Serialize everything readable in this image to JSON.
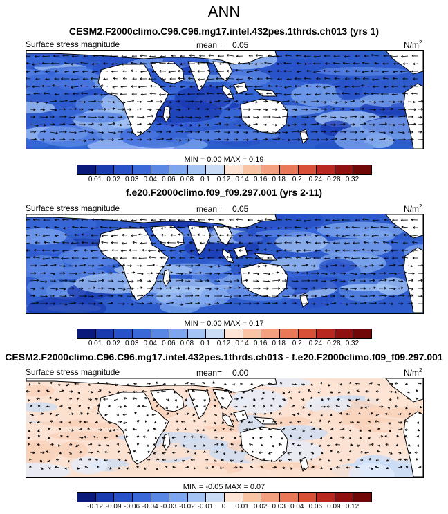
{
  "title": "ANN",
  "panels": [
    {
      "title": "CESM2.F2000climo.C96.C96.mg17.intel.432pes.1thrds.ch013 (yrs 1)",
      "left_label": "Surface stress magnitude",
      "mean_label": "mean=",
      "mean_value": "0.05",
      "units": "N/m",
      "units_exp": "2",
      "minmax_text": "MIN =   0.00 MAX =   0.19",
      "kind": "field"
    },
    {
      "title": "f.e20.F2000climo.f09_f09.297.001 (yrs 2-11)",
      "left_label": "Surface stress magnitude",
      "mean_label": "mean=",
      "mean_value": "0.05",
      "units": "N/m",
      "units_exp": "2",
      "minmax_text": "MIN =   0.00 MAX =   0.17",
      "kind": "field"
    },
    {
      "title": "CESM2.F2000climo.C96.C96.mg17.intel.432pes.1thrds.ch013 - f.e20.F2000climo.f09_f09.297.001",
      "left_label": "Surface stress magnitude",
      "mean_label": "mean=",
      "mean_value": "0.00",
      "units": "N/m",
      "units_exp": "2",
      "minmax_text": "MIN =  -0.05 MAX =   0.07",
      "kind": "diff"
    }
  ],
  "chart_data": [
    {
      "type": "heatmap",
      "title": "CESM2.F2000climo.C96.C96.mg17.intel.432pes.1thrds.ch013 (yrs 1)",
      "variable": "Surface stress magnitude",
      "units": "N/m2",
      "mean": 0.05,
      "min": 0.0,
      "max": 0.19,
      "colorbar_levels": [
        "0.01",
        "0.02",
        "0.03",
        "0.04",
        "0.06",
        "0.08",
        "0.1",
        "0.12",
        "0.14",
        "0.16",
        "0.18",
        "0.2",
        "0.24",
        "0.28",
        "0.32"
      ],
      "colorbar_colors": [
        "#0a1a7a",
        "#1a3ab0",
        "#2850c8",
        "#3a68d8",
        "#5a86e4",
        "#7ea6ee",
        "#a4c4f4",
        "#cadcf6",
        "#fde4d4",
        "#f8c4a4",
        "#f2a080",
        "#e87858",
        "#d85038",
        "#b82820",
        "#901010",
        "#700808"
      ]
    },
    {
      "type": "heatmap",
      "title": "f.e20.F2000climo.f09_f09.297.001 (yrs 2-11)",
      "variable": "Surface stress magnitude",
      "units": "N/m2",
      "mean": 0.05,
      "min": 0.0,
      "max": 0.17,
      "colorbar_levels": [
        "0.01",
        "0.02",
        "0.03",
        "0.04",
        "0.06",
        "0.08",
        "0.1",
        "0.12",
        "0.14",
        "0.16",
        "0.18",
        "0.2",
        "0.24",
        "0.28",
        "0.32"
      ],
      "colorbar_colors": [
        "#0a1a7a",
        "#1a3ab0",
        "#2850c8",
        "#3a68d8",
        "#5a86e4",
        "#7ea6ee",
        "#a4c4f4",
        "#cadcf6",
        "#fde4d4",
        "#f8c4a4",
        "#f2a080",
        "#e87858",
        "#d85038",
        "#b82820",
        "#901010",
        "#700808"
      ]
    },
    {
      "type": "heatmap",
      "title": "CESM2.F2000climo.C96.C96.mg17.intel.432pes.1thrds.ch013 - f.e20.F2000climo.f09_f09.297.001",
      "variable": "Surface stress magnitude",
      "units": "N/m2",
      "mean": 0.0,
      "min": -0.05,
      "max": 0.07,
      "colorbar_levels": [
        "-0.12",
        "-0.09",
        "-0.06",
        "-0.04",
        "-0.03",
        "-0.02",
        "-0.01",
        "0",
        "0.01",
        "0.02",
        "0.03",
        "0.04",
        "0.06",
        "0.09",
        "0.12"
      ],
      "colorbar_colors": [
        "#0a1a7a",
        "#1a3ab0",
        "#2850c8",
        "#3a68d8",
        "#5a86e4",
        "#7ea6ee",
        "#a4c4f4",
        "#cadcf6",
        "#fde4d4",
        "#f8c4a4",
        "#f2a080",
        "#e87858",
        "#d85038",
        "#b82820",
        "#901010",
        "#700808"
      ]
    }
  ]
}
